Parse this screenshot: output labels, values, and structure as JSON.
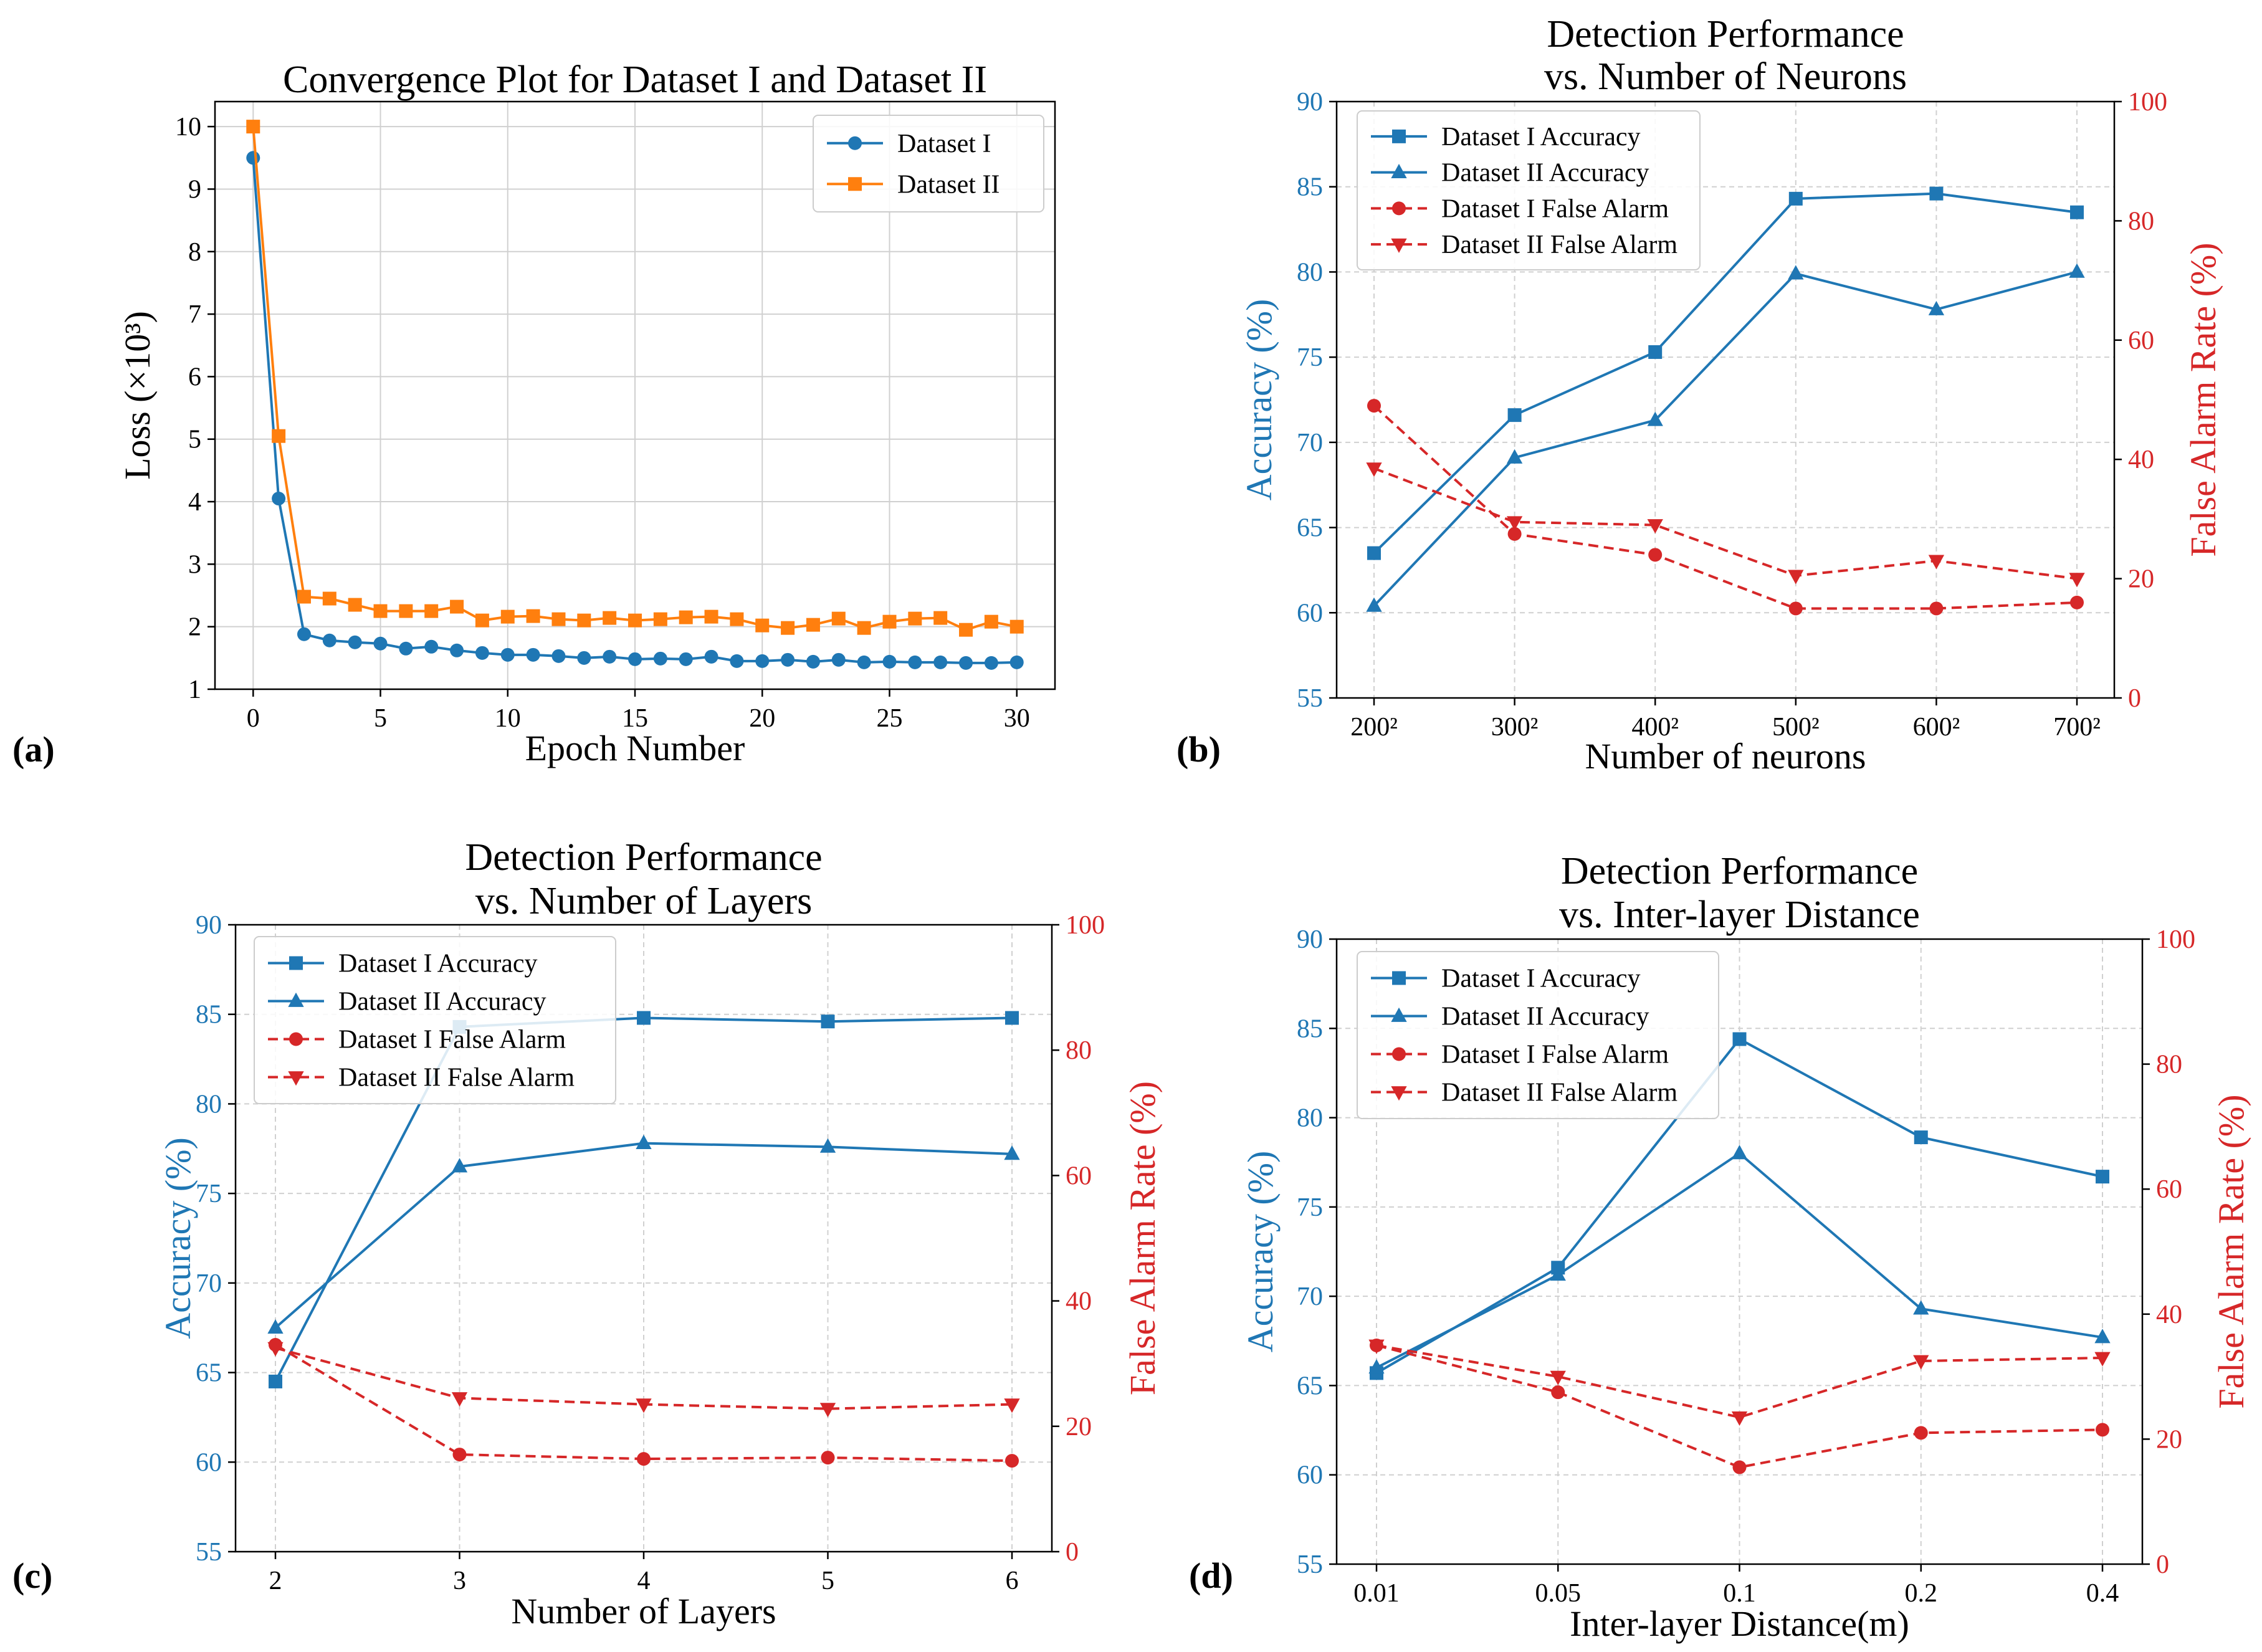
{
  "colors": {
    "blue": "#1f77b4",
    "orange": "#ff7f0e",
    "red": "#d62728",
    "grid": "#d0d0d0",
    "axis": "#000000"
  },
  "chart_data": [
    {
      "panel": "(a)",
      "type": "line",
      "title": [
        "Convergence Plot for Dataset I and Dataset II"
      ],
      "xlabel": "Epoch Number",
      "ylabel": "Loss (×10³)",
      "xlim": [
        -1.5,
        31.5
      ],
      "ylim": [
        1,
        10.4
      ],
      "xticks": [
        0,
        5,
        10,
        15,
        20,
        25,
        30
      ],
      "xtick_labels": [
        "0",
        "5",
        "10",
        "15",
        "20",
        "25",
        "30"
      ],
      "yticks": [
        1,
        2,
        3,
        4,
        5,
        6,
        7,
        8,
        9,
        10
      ],
      "ytick_labels": [
        "1",
        "2",
        "3",
        "4",
        "5",
        "6",
        "7",
        "8",
        "9",
        "10"
      ],
      "legend_position": "top-right",
      "x": [
        0,
        1,
        2,
        3,
        4,
        5,
        6,
        7,
        8,
        9,
        10,
        11,
        12,
        13,
        14,
        15,
        16,
        17,
        18,
        19,
        20,
        21,
        22,
        23,
        24,
        25,
        26,
        27,
        28,
        29,
        30
      ],
      "series": [
        {
          "name": "Dataset I",
          "color": "blue",
          "marker": "circle",
          "dash": false,
          "values": [
            9.5,
            4.05,
            1.88,
            1.78,
            1.75,
            1.73,
            1.65,
            1.68,
            1.62,
            1.58,
            1.55,
            1.55,
            1.53,
            1.5,
            1.52,
            1.48,
            1.49,
            1.48,
            1.52,
            1.45,
            1.45,
            1.47,
            1.44,
            1.47,
            1.43,
            1.44,
            1.43,
            1.43,
            1.42,
            1.42,
            1.43
          ]
        },
        {
          "name": "Dataset II",
          "color": "orange",
          "marker": "square",
          "dash": false,
          "values": [
            10.0,
            5.05,
            2.48,
            2.45,
            2.35,
            2.25,
            2.25,
            2.25,
            2.32,
            2.1,
            2.16,
            2.17,
            2.12,
            2.1,
            2.14,
            2.1,
            2.12,
            2.15,
            2.16,
            2.12,
            2.02,
            1.98,
            2.03,
            2.13,
            1.98,
            2.08,
            2.13,
            2.14,
            1.95,
            2.08,
            2.0
          ]
        }
      ]
    },
    {
      "panel": "(b)",
      "type": "line",
      "title": [
        "Detection Performance",
        "vs. Number of Neurons"
      ],
      "xlabel": "Number of neurons",
      "ylabel": "Accuracy (%)",
      "y2label": "False Alarm Rate (%)",
      "categories": [
        "200²",
        "300²",
        "400²",
        "500²",
        "600²",
        "700²"
      ],
      "ylim": [
        55,
        90
      ],
      "yticks": [
        55,
        60,
        65,
        70,
        75,
        80,
        85,
        90
      ],
      "ytick_labels": [
        "55",
        "60",
        "65",
        "70",
        "75",
        "80",
        "85",
        "90"
      ],
      "y2lim": [
        0,
        100
      ],
      "y2ticks": [
        0,
        20,
        40,
        60,
        80,
        100
      ],
      "y2tick_labels": [
        "0",
        "20",
        "40",
        "60",
        "80",
        "100"
      ],
      "legend_position": "top-left",
      "series": [
        {
          "name": "Dataset I Accuracy",
          "axis": "left",
          "color": "blue",
          "marker": "square",
          "dash": false,
          "values": [
            63.5,
            71.6,
            75.3,
            84.3,
            84.6,
            83.5
          ]
        },
        {
          "name": "Dataset II Accuracy",
          "axis": "left",
          "color": "blue",
          "marker": "triangle-up",
          "dash": false,
          "values": [
            60.4,
            69.1,
            71.3,
            79.9,
            77.8,
            80.0
          ]
        },
        {
          "name": "Dataset I False Alarm",
          "axis": "right",
          "color": "red",
          "marker": "circle",
          "dash": true,
          "values": [
            49.0,
            27.5,
            24.0,
            15.0,
            15.0,
            16.0
          ]
        },
        {
          "name": "Dataset II False Alarm",
          "axis": "right",
          "color": "red",
          "marker": "triangle-down",
          "dash": true,
          "values": [
            38.5,
            29.5,
            29.0,
            20.5,
            23.0,
            20.0
          ]
        }
      ]
    },
    {
      "panel": "(c)",
      "type": "line",
      "title": [
        "Detection Performance",
        "vs. Number of Layers"
      ],
      "xlabel": "Number of Layers",
      "ylabel": "Accuracy (%)",
      "y2label": "False Alarm Rate (%)",
      "categories": [
        "2",
        "3",
        "4",
        "5",
        "6"
      ],
      "ylim": [
        55,
        90
      ],
      "yticks": [
        55,
        60,
        65,
        70,
        75,
        80,
        85,
        90
      ],
      "ytick_labels": [
        "55",
        "60",
        "65",
        "70",
        "75",
        "80",
        "85",
        "90"
      ],
      "y2lim": [
        0,
        100
      ],
      "y2ticks": [
        0,
        20,
        40,
        60,
        80,
        100
      ],
      "y2tick_labels": [
        "0",
        "20",
        "40",
        "60",
        "80",
        "100"
      ],
      "legend_position": "top-left",
      "series": [
        {
          "name": "Dataset I Accuracy",
          "axis": "left",
          "color": "blue",
          "marker": "square",
          "dash": false,
          "values": [
            64.5,
            84.3,
            84.8,
            84.6,
            84.8
          ]
        },
        {
          "name": "Dataset II Accuracy",
          "axis": "left",
          "color": "blue",
          "marker": "triangle-up",
          "dash": false,
          "values": [
            67.5,
            76.5,
            77.8,
            77.6,
            77.2
          ]
        },
        {
          "name": "Dataset I False Alarm",
          "axis": "right",
          "color": "red",
          "marker": "circle",
          "dash": true,
          "values": [
            33.0,
            15.5,
            14.8,
            15.0,
            14.5
          ]
        },
        {
          "name": "Dataset II False Alarm",
          "axis": "right",
          "color": "red",
          "marker": "triangle-down",
          "dash": true,
          "values": [
            32.5,
            24.5,
            23.5,
            22.8,
            23.5
          ]
        }
      ]
    },
    {
      "panel": "(d)",
      "type": "line",
      "title": [
        "Detection Performance",
        "vs. Inter-layer Distance"
      ],
      "xlabel": "Inter-layer Distance(m)",
      "ylabel": "Accuracy (%)",
      "y2label": "False Alarm Rate (%)",
      "categories": [
        "0.01",
        "0.05",
        "0.1",
        "0.2",
        "0.4"
      ],
      "ylim": [
        55,
        90
      ],
      "yticks": [
        55,
        60,
        65,
        70,
        75,
        80,
        85,
        90
      ],
      "ytick_labels": [
        "55",
        "60",
        "65",
        "70",
        "75",
        "80",
        "85",
        "90"
      ],
      "y2lim": [
        0,
        100
      ],
      "y2ticks": [
        0,
        20,
        40,
        60,
        80,
        100
      ],
      "y2tick_labels": [
        "0",
        "20",
        "40",
        "60",
        "80",
        "100"
      ],
      "legend_position": "top-left",
      "series": [
        {
          "name": "Dataset I Accuracy",
          "axis": "left",
          "color": "blue",
          "marker": "square",
          "dash": false,
          "values": [
            65.7,
            71.6,
            84.4,
            78.9,
            76.7
          ]
        },
        {
          "name": "Dataset II Accuracy",
          "axis": "left",
          "color": "blue",
          "marker": "triangle-up",
          "dash": false,
          "values": [
            66.0,
            71.2,
            78.0,
            69.3,
            67.7
          ]
        },
        {
          "name": "Dataset I False Alarm",
          "axis": "right",
          "color": "red",
          "marker": "circle",
          "dash": true,
          "values": [
            35.0,
            27.5,
            15.5,
            21.0,
            21.5
          ]
        },
        {
          "name": "Dataset II False Alarm",
          "axis": "right",
          "color": "red",
          "marker": "triangle-down",
          "dash": true,
          "values": [
            35.0,
            30.0,
            23.5,
            32.5,
            33.0
          ]
        }
      ]
    }
  ]
}
